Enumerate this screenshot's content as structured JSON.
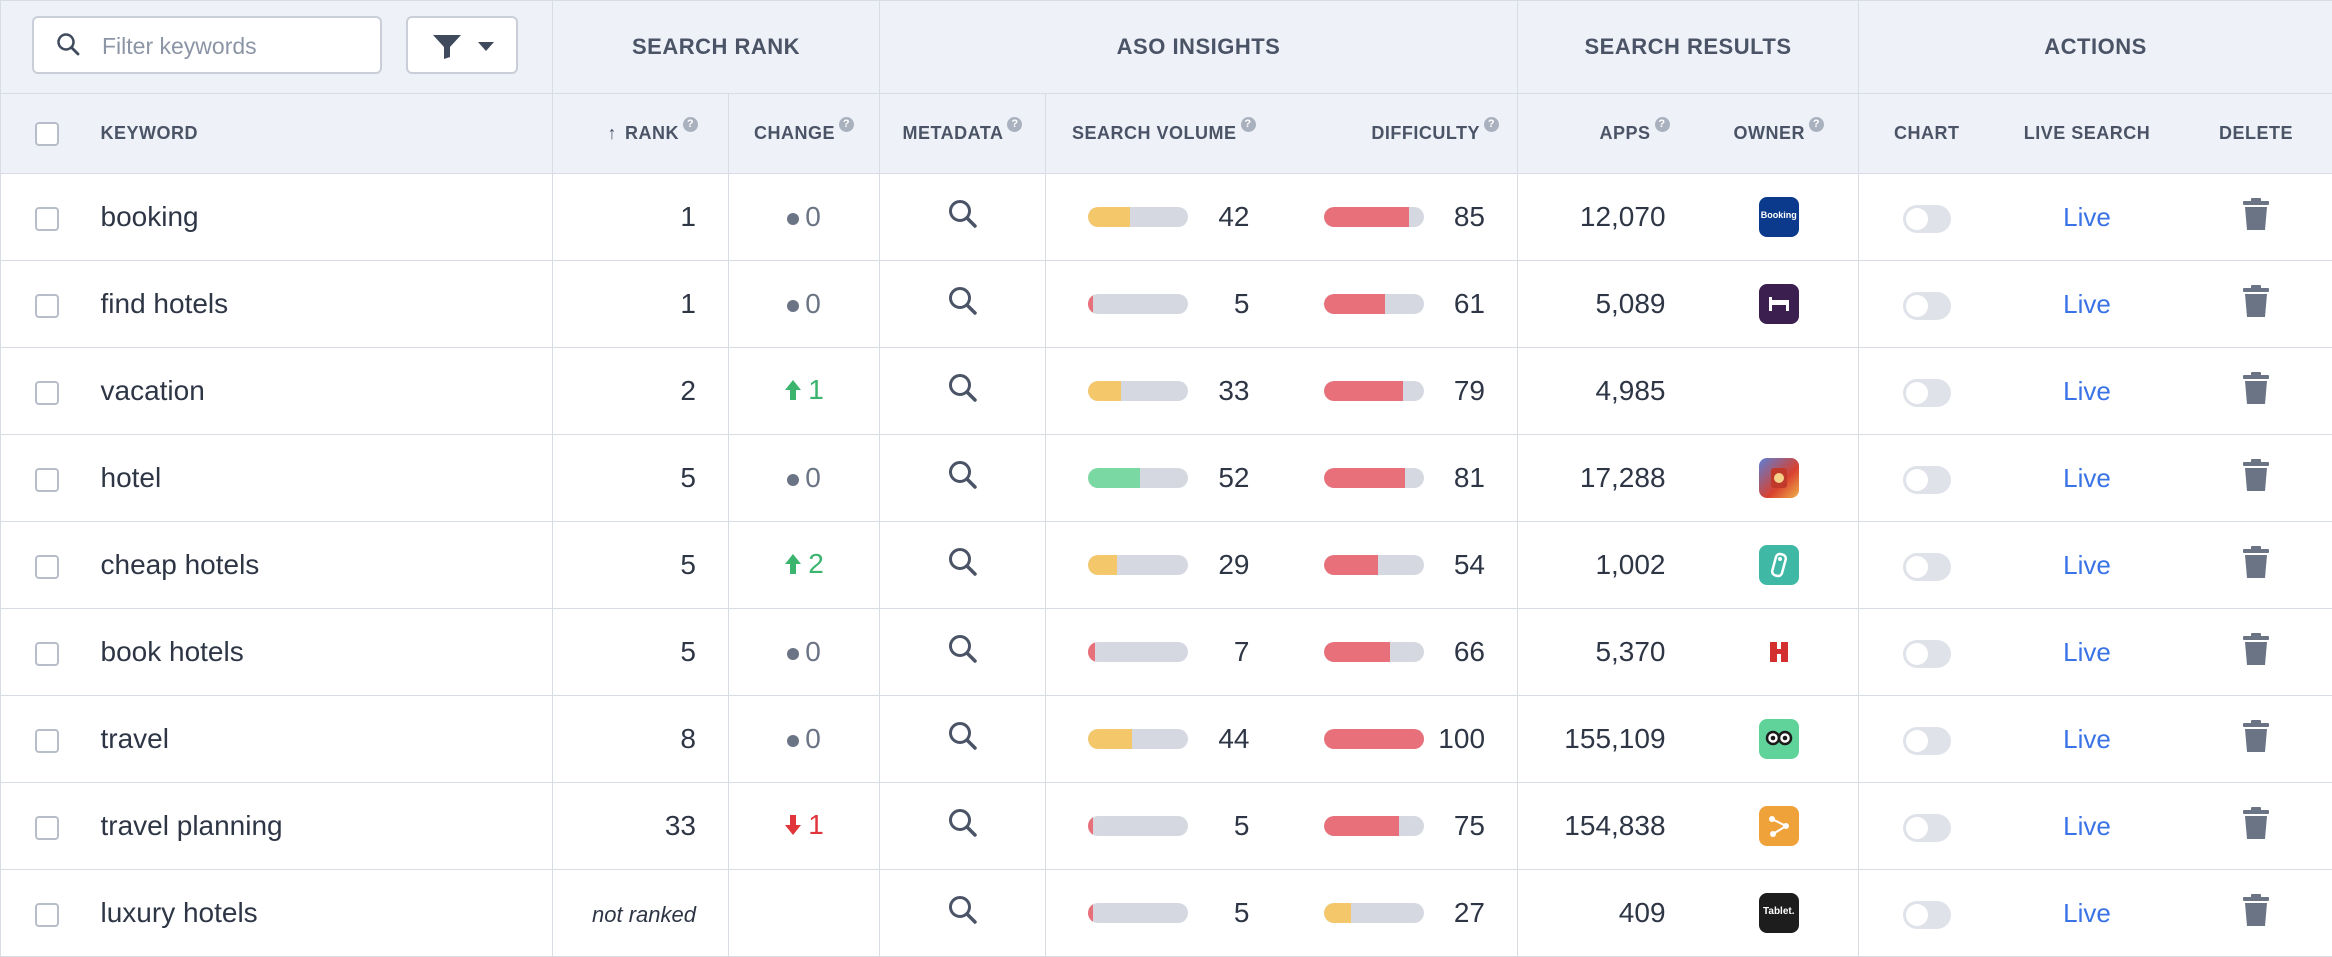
{
  "toolbar": {
    "filter_placeholder": "Filter keywords",
    "filter_value": ""
  },
  "groups": {
    "search_rank": "SEARCH RANK",
    "aso_insights": "ASO INSIGHTS",
    "search_results": "SEARCH RESULTS",
    "actions": "ACTIONS"
  },
  "columns": {
    "keyword": "KEYWORD",
    "rank": "RANK",
    "change": "CHANGE",
    "metadata": "METADATA",
    "search_volume": "SEARCH VOLUME",
    "difficulty": "DIFFICULTY",
    "apps": "APPS",
    "owner": "OWNER",
    "chart": "CHART",
    "live_search": "LIVE SEARCH",
    "delete": "DELETE",
    "help_glyph": "?"
  },
  "colors": {
    "bar_track": "#d5d8e0",
    "volume_low": "#e8707a",
    "volume_mid": "#f4c86a",
    "volume_high": "#7ad9a2",
    "difficulty_high": "#e8707a",
    "difficulty_low": "#f4c86a",
    "link": "#3a73e6"
  },
  "rows": [
    {
      "keyword": "booking",
      "rank": "1",
      "change": "0",
      "change_dir": "neutral",
      "volume": 42,
      "volume_color": "volume_mid",
      "difficulty": 85,
      "difficulty_color": "difficulty_high",
      "apps": "12,070",
      "owner_icon": "booking-app-icon",
      "owner_text": "Booking",
      "live": "Live"
    },
    {
      "keyword": "find hotels",
      "rank": "1",
      "change": "0",
      "change_dir": "neutral",
      "volume": 5,
      "volume_color": "volume_low",
      "difficulty": 61,
      "difficulty_color": "difficulty_high",
      "apps": "5,089",
      "owner_icon": "bed-app-icon",
      "owner_text": "",
      "live": "Live"
    },
    {
      "keyword": "vacation",
      "rank": "2",
      "change": "1",
      "change_dir": "up",
      "volume": 33,
      "volume_color": "volume_mid",
      "difficulty": 79,
      "difficulty_color": "difficulty_high",
      "apps": "4,985",
      "owner_icon": "",
      "owner_text": "",
      "live": "Live"
    },
    {
      "keyword": "hotel",
      "rank": "5",
      "change": "0",
      "change_dir": "neutral",
      "volume": 52,
      "volume_color": "volume_high",
      "difficulty": 81,
      "difficulty_color": "difficulty_high",
      "apps": "17,288",
      "owner_icon": "game-app-icon",
      "owner_text": "",
      "live": "Live"
    },
    {
      "keyword": "cheap hotels",
      "rank": "5",
      "change": "2",
      "change_dir": "up",
      "volume": 29,
      "volume_color": "volume_mid",
      "difficulty": 54,
      "difficulty_color": "difficulty_high",
      "apps": "1,002",
      "owner_icon": "door-tag-app-icon",
      "owner_text": "",
      "live": "Live"
    },
    {
      "keyword": "book hotels",
      "rank": "5",
      "change": "0",
      "change_dir": "neutral",
      "volume": 7,
      "volume_color": "volume_low",
      "difficulty": 66,
      "difficulty_color": "difficulty_high",
      "apps": "5,370",
      "owner_icon": "hotels-h-app-icon",
      "owner_text": "",
      "live": "Live"
    },
    {
      "keyword": "travel",
      "rank": "8",
      "change": "0",
      "change_dir": "neutral",
      "volume": 44,
      "volume_color": "volume_mid",
      "difficulty": 100,
      "difficulty_color": "difficulty_high",
      "apps": "155,109",
      "owner_icon": "tripadvisor-app-icon",
      "owner_text": "",
      "live": "Live"
    },
    {
      "keyword": "travel planning",
      "rank": "33",
      "change": "1",
      "change_dir": "down",
      "volume": 5,
      "volume_color": "volume_low",
      "difficulty": 75,
      "difficulty_color": "difficulty_high",
      "apps": "154,838",
      "owner_icon": "route-app-icon",
      "owner_text": "",
      "live": "Live"
    },
    {
      "keyword": "luxury hotels",
      "rank": "not ranked",
      "change": "",
      "change_dir": "none",
      "volume": 5,
      "volume_color": "volume_low",
      "difficulty": 27,
      "difficulty_color": "difficulty_low",
      "apps": "409",
      "owner_icon": "tablet-app-icon",
      "owner_text": "Tablet.",
      "live": "Live"
    }
  ]
}
